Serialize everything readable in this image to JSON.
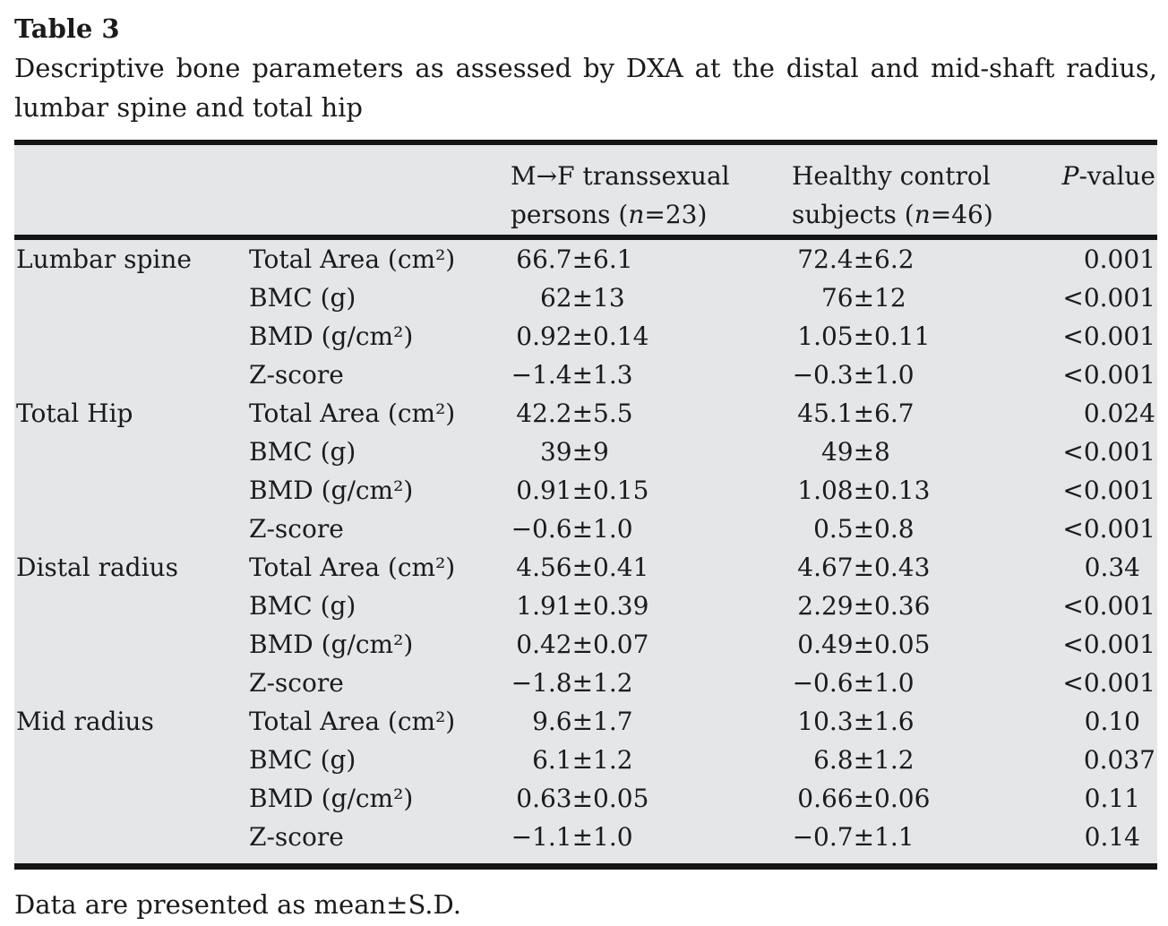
{
  "title": "Table 3",
  "caption": "Descriptive bone parameters as assessed by DXA at the distal and mid-shaft radius, lumbar spine and total hip",
  "table": {
    "header": {
      "group_col": "",
      "parameter_col": "",
      "mf_line1": "M→F transsexual",
      "mf_line2_pre": "persons (",
      "mf_n": "n",
      "mf_line2_post": "=23)",
      "control_line1": "Healthy control",
      "control_line2_pre": "subjects (",
      "control_n": "n",
      "control_line2_post": "=46)",
      "p_italic": "P",
      "p_rest": "-value"
    },
    "sections": [
      {
        "site": "Lumbar spine",
        "rows": [
          {
            "parameter": "Total Area (cm²)",
            "mf": "66.7±6.1",
            "control": "72.4±6.2",
            "p": "0.001"
          },
          {
            "parameter": "BMC (g)",
            "mf": "62±13",
            "control": "76±12",
            "p": "<0.001"
          },
          {
            "parameter": "BMD (g/cm²)",
            "mf": "0.92±0.14",
            "control": "1.05±0.11",
            "p": "<0.001"
          },
          {
            "parameter": "Z-score",
            "mf": "−1.4±1.3",
            "control": "−0.3±1.0",
            "p": "<0.001"
          }
        ]
      },
      {
        "site": "Total Hip",
        "rows": [
          {
            "parameter": "Total Area (cm²)",
            "mf": "42.2±5.5",
            "control": "45.1±6.7",
            "p": "0.024"
          },
          {
            "parameter": "BMC (g)",
            "mf": "39±9",
            "control": "49±8",
            "p": "<0.001"
          },
          {
            "parameter": "BMD (g/cm²)",
            "mf": "0.91±0.15",
            "control": "1.08±0.13",
            "p": "<0.001"
          },
          {
            "parameter": "Z-score",
            "mf": "−0.6±1.0",
            "control": "0.5±0.8",
            "p": "<0.001"
          }
        ]
      },
      {
        "site": "Distal radius",
        "rows": [
          {
            "parameter": "Total Area (cm²)",
            "mf": "4.56±0.41",
            "control": "4.67±0.43",
            "p": "0.34"
          },
          {
            "parameter": "BMC (g)",
            "mf": "1.91±0.39",
            "control": "2.29±0.36",
            "p": "<0.001"
          },
          {
            "parameter": "BMD (g/cm²)",
            "mf": "0.42±0.07",
            "control": "0.49±0.05",
            "p": "<0.001"
          },
          {
            "parameter": "Z-score",
            "mf": "−1.8±1.2",
            "control": "−0.6±1.0",
            "p": "<0.001"
          }
        ]
      },
      {
        "site": "Mid radius",
        "rows": [
          {
            "parameter": "Total Area (cm²)",
            "mf": "9.6±1.7",
            "control": "10.3±1.6",
            "p": "0.10"
          },
          {
            "parameter": "BMC (g)",
            "mf": "6.1±1.2",
            "control": "6.8±1.2",
            "p": "0.037"
          },
          {
            "parameter": "BMD (g/cm²)",
            "mf": "0.63±0.05",
            "control": "0.66±0.06",
            "p": "0.11"
          },
          {
            "parameter": "Z-score",
            "mf": "−1.1±1.0",
            "control": "−0.7±1.1",
            "p": "0.14"
          }
        ]
      }
    ]
  },
  "footnote": "Data are presented as mean±S.D.",
  "colors": {
    "table_background": "#e5e6e8",
    "rule": "#151515",
    "text": "#1b1b1b"
  }
}
